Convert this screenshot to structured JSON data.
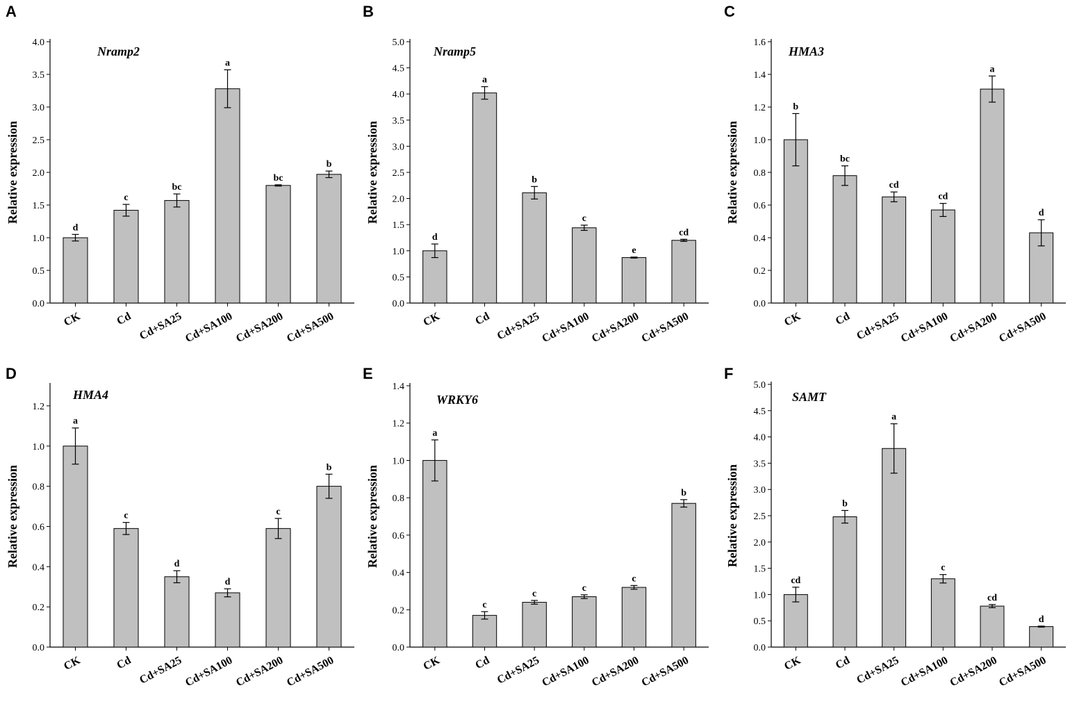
{
  "chart_data": [
    {
      "type": "bar",
      "panel": "A",
      "title": "Nramp2",
      "xlabel": "",
      "ylabel": "Relative expression",
      "ylim": [
        0,
        4.0
      ],
      "yticks": [
        "0.0",
        "0.5",
        "1.0",
        "1.5",
        "2.0",
        "2.5",
        "3.0",
        "3.5",
        "4.0"
      ],
      "categories": [
        "CK",
        "Cd",
        "Cd+SA25",
        "Cd+SA100",
        "Cd+SA200",
        "Cd+SA500"
      ],
      "values": [
        1.0,
        1.42,
        1.57,
        3.28,
        1.8,
        1.97
      ],
      "errors": [
        0.05,
        0.09,
        0.1,
        0.29,
        0.01,
        0.05
      ],
      "letters": [
        "d",
        "c",
        "bc",
        "a",
        "bc",
        "b"
      ]
    },
    {
      "type": "bar",
      "panel": "B",
      "title": "Nramp5",
      "xlabel": "",
      "ylabel": "Relative expression",
      "ylim": [
        0,
        5.0
      ],
      "yticks": [
        "0.0",
        "0.5",
        "1.0",
        "1.5",
        "2.0",
        "2.5",
        "3.0",
        "3.5",
        "4.0",
        "4.5",
        "5.0"
      ],
      "categories": [
        "CK",
        "Cd",
        "Cd+SA25",
        "Cd+SA100",
        "Cd+SA200",
        "Cd+SA500"
      ],
      "values": [
        1.0,
        4.02,
        2.11,
        1.44,
        0.87,
        1.2
      ],
      "errors": [
        0.13,
        0.12,
        0.12,
        0.05,
        0.01,
        0.02
      ],
      "letters": [
        "d",
        "a",
        "b",
        "c",
        "e",
        "cd"
      ]
    },
    {
      "type": "bar",
      "panel": "C",
      "title": "HMA3",
      "xlabel": "",
      "ylabel": "Relative expression",
      "ylim": [
        0,
        1.6
      ],
      "yticks": [
        "0.0",
        "0.2",
        "0.4",
        "0.6",
        "0.8",
        "1.0",
        "1.2",
        "1.4",
        "1.6"
      ],
      "categories": [
        "CK",
        "Cd",
        "Cd+SA25",
        "Cd+SA100",
        "Cd+SA200",
        "Cd+SA500"
      ],
      "values": [
        1.0,
        0.78,
        0.65,
        0.57,
        1.31,
        0.43
      ],
      "errors": [
        0.16,
        0.06,
        0.03,
        0.04,
        0.08,
        0.08
      ],
      "letters": [
        "b",
        "bc",
        "cd",
        "cd",
        "a",
        "d"
      ]
    },
    {
      "type": "bar",
      "panel": "D",
      "title": "HMA4",
      "xlabel": "",
      "ylabel": "Relative expression",
      "ylim": [
        0,
        1.3
      ],
      "yticks": [
        "0.0",
        "0.2",
        "0.4",
        "0.6",
        "0.8",
        "1.0",
        "1.2"
      ],
      "categories": [
        "CK",
        "Cd",
        "Cd+SA25",
        "Cd+SA100",
        "Cd+SA200",
        "Cd+SA500"
      ],
      "values": [
        1.0,
        0.59,
        0.35,
        0.27,
        0.59,
        0.8
      ],
      "errors": [
        0.09,
        0.03,
        0.03,
        0.02,
        0.05,
        0.06
      ],
      "letters": [
        "a",
        "c",
        "d",
        "d",
        "c",
        "b"
      ]
    },
    {
      "type": "bar",
      "panel": "E",
      "title": "WRKY6",
      "xlabel": "",
      "ylabel": "Relative expression",
      "ylim": [
        0,
        1.4
      ],
      "yticks": [
        "0.0",
        "0.2",
        "0.4",
        "0.6",
        "0.8",
        "1.0",
        "1.2",
        "1.4"
      ],
      "categories": [
        "CK",
        "Cd",
        "Cd+SA25",
        "Cd+SA100",
        "Cd+SA200",
        "Cd+SA500"
      ],
      "values": [
        1.0,
        0.17,
        0.24,
        0.27,
        0.32,
        0.77
      ],
      "errors": [
        0.11,
        0.02,
        0.01,
        0.01,
        0.01,
        0.02
      ],
      "letters": [
        "a",
        "c",
        "c",
        "c",
        "c",
        "b"
      ]
    },
    {
      "type": "bar",
      "panel": "F",
      "title": "SAMT",
      "xlabel": "",
      "ylabel": "Relative expression",
      "ylim": [
        0,
        5.0
      ],
      "yticks": [
        "0.0",
        "0.5",
        "1.0",
        "1.5",
        "2.0",
        "2.5",
        "3.0",
        "3.5",
        "4.0",
        "4.5",
        "5.0"
      ],
      "categories": [
        "CK",
        "Cd",
        "Cd+SA25",
        "Cd+SA100",
        "Cd+SA200",
        "Cd+SA500"
      ],
      "values": [
        1.0,
        2.48,
        3.78,
        1.3,
        0.78,
        0.39
      ],
      "errors": [
        0.14,
        0.12,
        0.47,
        0.08,
        0.03,
        0.01
      ],
      "letters": [
        "cd",
        "b",
        "a",
        "c",
        "cd",
        "d"
      ]
    }
  ]
}
